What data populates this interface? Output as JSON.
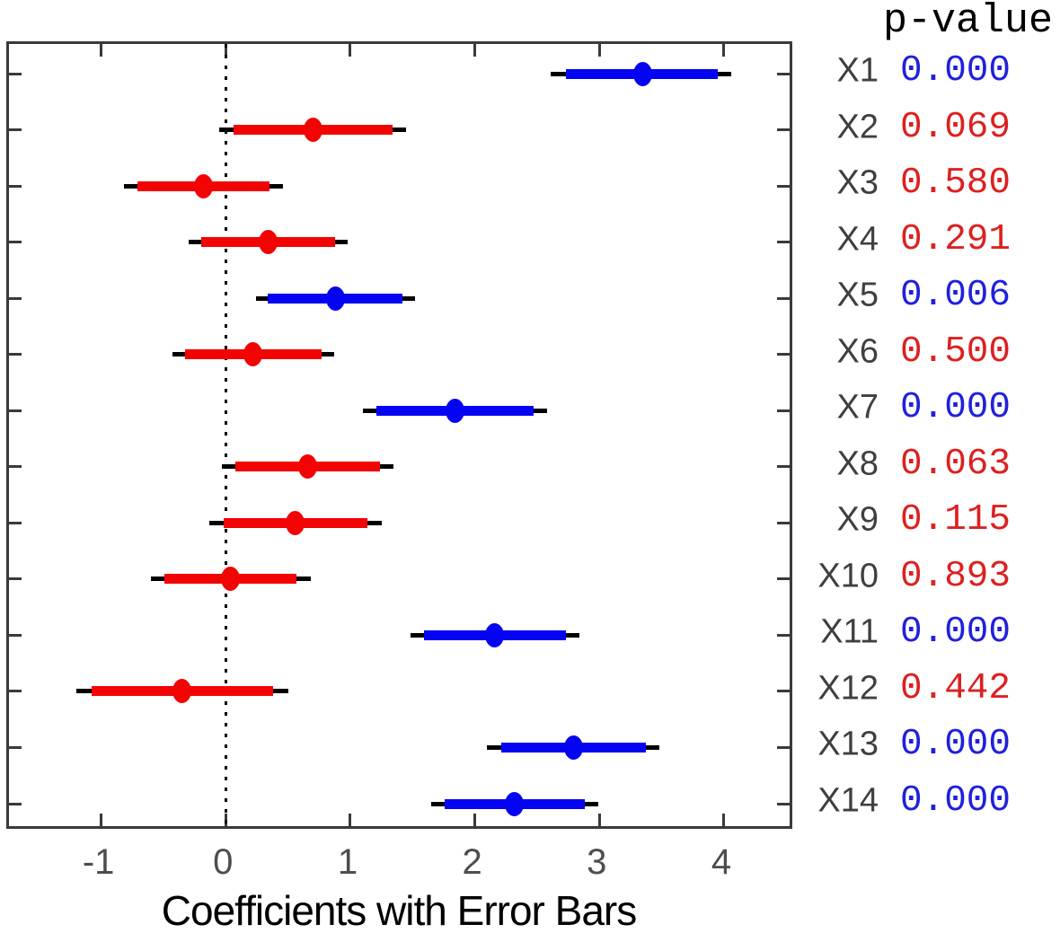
{
  "chart_data": {
    "type": "scatter",
    "subtype": "forest-errorbar",
    "title": "",
    "xlabel": "Coefficients with Error Bars",
    "ylabel": "",
    "pvalue_header": "p-value",
    "xlim": [
      -1.74,
      4.57
    ],
    "xticks": [
      -1,
      0,
      1,
      2,
      3,
      4
    ],
    "zero_line_x": 0,
    "grid": false,
    "legend": "none",
    "colors": {
      "significant_marker": "#0404f2",
      "nonsignificant_marker": "#f20404",
      "significant_text": "#2020dd",
      "nonsignificant_text": "#dd2020",
      "outer_bar": "#000000",
      "axis": "#3a3a3a",
      "tick_label": "#4d4d4d",
      "row_label": "#3f3f3f",
      "xlabel_color": "#000000"
    },
    "rows": [
      {
        "label": "X1",
        "coef": 3.35,
        "inner": [
          2.73,
          3.95
        ],
        "outer": [
          2.61,
          4.06
        ],
        "p": "0.000",
        "significant": true
      },
      {
        "label": "X2",
        "coef": 0.7,
        "inner": [
          0.06,
          1.34
        ],
        "outer": [
          -0.05,
          1.45
        ],
        "p": "0.069",
        "significant": false
      },
      {
        "label": "X3",
        "coef": -0.18,
        "inner": [
          -0.71,
          0.35
        ],
        "outer": [
          -0.82,
          0.46
        ],
        "p": "0.580",
        "significant": false
      },
      {
        "label": "X4",
        "coef": 0.34,
        "inner": [
          -0.2,
          0.88
        ],
        "outer": [
          -0.3,
          0.98
        ],
        "p": "0.291",
        "significant": false
      },
      {
        "label": "X5",
        "coef": 0.88,
        "inner": [
          0.34,
          1.42
        ],
        "outer": [
          0.24,
          1.52
        ],
        "p": "0.006",
        "significant": true
      },
      {
        "label": "X6",
        "coef": 0.22,
        "inner": [
          -0.33,
          0.77
        ],
        "outer": [
          -0.43,
          0.87
        ],
        "p": "0.500",
        "significant": false
      },
      {
        "label": "X7",
        "coef": 1.84,
        "inner": [
          1.21,
          2.47
        ],
        "outer": [
          1.1,
          2.58
        ],
        "p": "0.000",
        "significant": true
      },
      {
        "label": "X8",
        "coef": 0.66,
        "inner": [
          0.08,
          1.24
        ],
        "outer": [
          -0.03,
          1.35
        ],
        "p": "0.063",
        "significant": false
      },
      {
        "label": "X9",
        "coef": 0.56,
        "inner": [
          -0.02,
          1.14
        ],
        "outer": [
          -0.13,
          1.25
        ],
        "p": "0.115",
        "significant": false
      },
      {
        "label": "X10",
        "coef": 0.04,
        "inner": [
          -0.49,
          0.57
        ],
        "outer": [
          -0.6,
          0.68
        ],
        "p": "0.893",
        "significant": false
      },
      {
        "label": "X11",
        "coef": 2.16,
        "inner": [
          1.59,
          2.73
        ],
        "outer": [
          1.48,
          2.84
        ],
        "p": "0.000",
        "significant": true
      },
      {
        "label": "X12",
        "coef": -0.35,
        "inner": [
          -1.08,
          0.38
        ],
        "outer": [
          -1.2,
          0.5
        ],
        "p": "0.442",
        "significant": false
      },
      {
        "label": "X13",
        "coef": 2.79,
        "inner": [
          2.21,
          3.37
        ],
        "outer": [
          2.1,
          3.48
        ],
        "p": "0.000",
        "significant": true
      },
      {
        "label": "X14",
        "coef": 2.32,
        "inner": [
          1.76,
          2.88
        ],
        "outer": [
          1.65,
          2.99
        ],
        "p": "0.000",
        "significant": true
      }
    ]
  }
}
